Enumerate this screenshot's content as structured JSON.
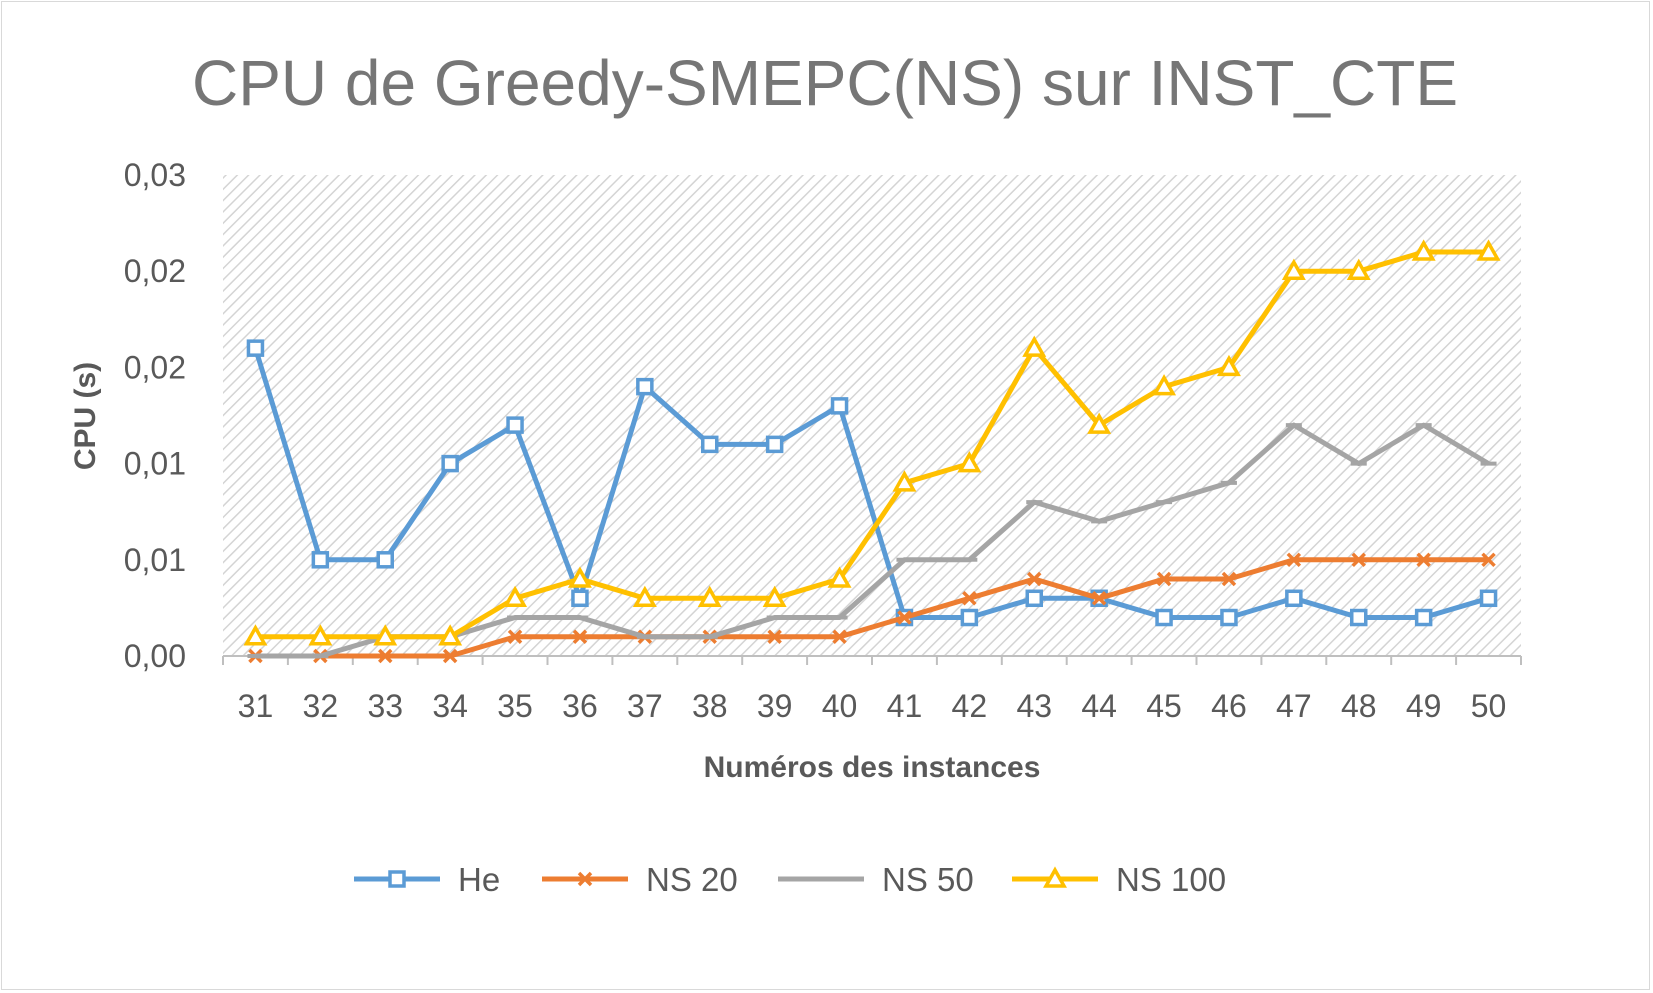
{
  "chart_data": {
    "type": "line",
    "title": "CPU de Greedy-SMEPC(NS) sur INST_CTE",
    "xlabel": "Numéros des instances",
    "ylabel": "CPU (s)",
    "categories": [
      "31",
      "32",
      "33",
      "34",
      "35",
      "36",
      "37",
      "38",
      "39",
      "40",
      "41",
      "42",
      "43",
      "44",
      "45",
      "46",
      "47",
      "48",
      "49",
      "50"
    ],
    "ylim": [
      0,
      0.025
    ],
    "ytick_values": [
      0,
      0.005,
      0.01,
      0.015,
      0.02,
      0.025
    ],
    "ytick_labels": [
      "0,00",
      "0,01",
      "0,01",
      "0,02",
      "0,02",
      "0,03"
    ],
    "grid": false,
    "plot_background": "hatched",
    "legend_position": "bottom",
    "series": [
      {
        "name": "He",
        "color": "#5b9bd5",
        "marker": "square",
        "values": [
          0.016,
          0.005,
          0.005,
          0.01,
          0.012,
          0.003,
          0.014,
          0.011,
          0.011,
          0.013,
          0.002,
          0.002,
          0.003,
          0.003,
          0.002,
          0.002,
          0.003,
          0.002,
          0.002,
          0.003
        ]
      },
      {
        "name": "NS 20",
        "color": "#ed7d31",
        "marker": "x",
        "values": [
          0.0,
          0.0,
          0.0,
          0.0,
          0.001,
          0.001,
          0.001,
          0.001,
          0.001,
          0.001,
          0.002,
          0.003,
          0.004,
          0.003,
          0.004,
          0.004,
          0.005,
          0.005,
          0.005,
          0.005
        ]
      },
      {
        "name": "NS 50",
        "color": "#a5a5a5",
        "marker": "dash",
        "values": [
          0.0,
          0.0,
          0.001,
          0.001,
          0.002,
          0.002,
          0.001,
          0.001,
          0.002,
          0.002,
          0.005,
          0.005,
          0.008,
          0.007,
          0.008,
          0.009,
          0.012,
          0.01,
          0.012,
          0.01
        ]
      },
      {
        "name": "NS 100",
        "color": "#ffc000",
        "marker": "triangle",
        "values": [
          0.001,
          0.001,
          0.001,
          0.001,
          0.003,
          0.004,
          0.003,
          0.003,
          0.003,
          0.004,
          0.009,
          0.01,
          0.016,
          0.012,
          0.014,
          0.015,
          0.02,
          0.02,
          0.021,
          0.021
        ]
      }
    ]
  }
}
